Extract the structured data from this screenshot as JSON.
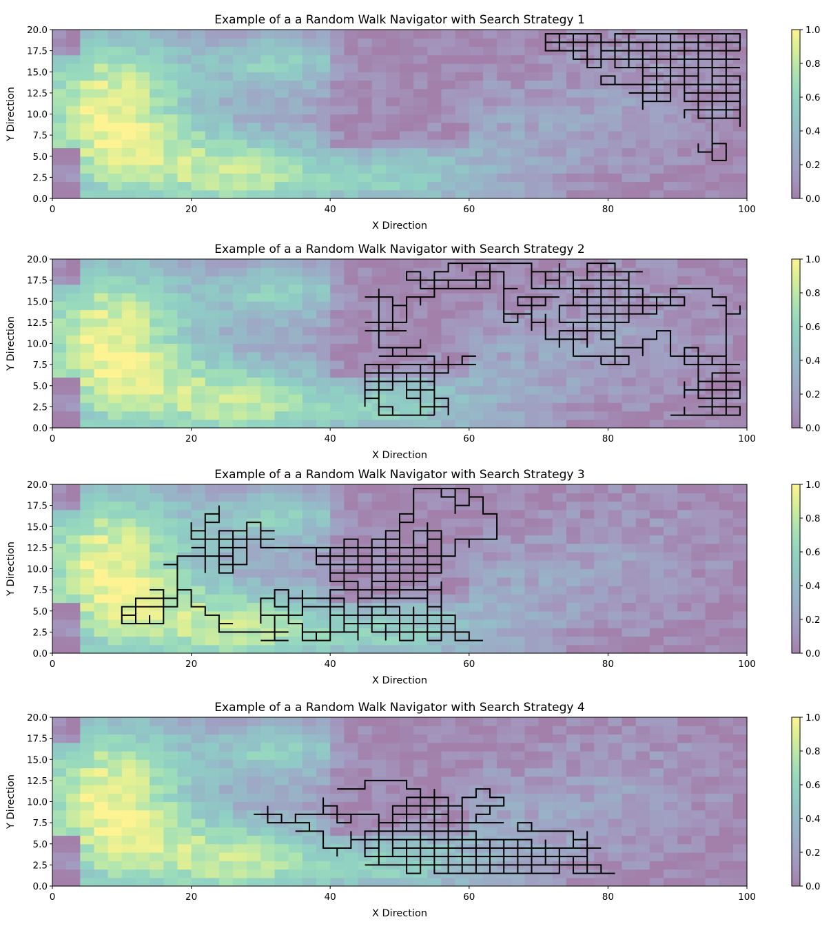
{
  "chart_data": [
    {
      "type": "heatmap",
      "title": "Example of a a Random Walk Navigator with Search Strategy 1",
      "xlabel": "X Direction",
      "ylabel": "Y Direction",
      "xlim": [
        0,
        100
      ],
      "ylim": [
        0,
        20
      ],
      "xticks": [
        "0",
        "20",
        "40",
        "60",
        "80",
        "100"
      ],
      "yticks": [
        "0.0",
        "2.5",
        "5.0",
        "7.5",
        "10.0",
        "12.5",
        "15.0",
        "17.5",
        "20.0"
      ],
      "colorbar": {
        "min": 0.0,
        "max": 1.0,
        "ticks": [
          "0.0",
          "0.2",
          "0.4",
          "0.6",
          "0.8",
          "1.0"
        ],
        "colormap": "viridis",
        "alpha": 0.5
      },
      "overlay": {
        "type": "line",
        "color": "#000000",
        "region": {
          "x": [
            70,
            100
          ],
          "y": [
            1.5,
            19.5
          ]
        },
        "seed": 11
      }
    },
    {
      "type": "heatmap",
      "title": "Example of a a Random Walk Navigator with Search Strategy 2",
      "xlabel": "X Direction",
      "ylabel": "Y Direction",
      "xlim": [
        0,
        100
      ],
      "ylim": [
        0,
        20
      ],
      "xticks": [
        "0",
        "20",
        "40",
        "60",
        "80",
        "100"
      ],
      "yticks": [
        "0.0",
        "2.5",
        "5.0",
        "7.5",
        "10.0",
        "12.5",
        "15.0",
        "17.5",
        "20.0"
      ],
      "colorbar": {
        "min": 0.0,
        "max": 1.0,
        "ticks": [
          "0.0",
          "0.2",
          "0.4",
          "0.6",
          "0.8",
          "1.0"
        ],
        "colormap": "viridis",
        "alpha": 0.5
      },
      "overlay": {
        "type": "line",
        "color": "#000000",
        "region": {
          "x": [
            45,
            100
          ],
          "y": [
            1.5,
            19.5
          ]
        },
        "seed": 22
      }
    },
    {
      "type": "heatmap",
      "title": "Example of a a Random Walk Navigator with Search Strategy 3",
      "xlabel": "X Direction",
      "ylabel": "Y Direction",
      "xlim": [
        0,
        100
      ],
      "ylim": [
        0,
        20
      ],
      "xticks": [
        "0",
        "20",
        "40",
        "60",
        "80",
        "100"
      ],
      "yticks": [
        "0.0",
        "2.5",
        "5.0",
        "7.5",
        "10.0",
        "12.5",
        "15.0",
        "17.5",
        "20.0"
      ],
      "colorbar": {
        "min": 0.0,
        "max": 1.0,
        "ticks": [
          "0.0",
          "0.2",
          "0.4",
          "0.6",
          "0.8",
          "1.0"
        ],
        "colormap": "viridis",
        "alpha": 0.5
      },
      "overlay": {
        "type": "line",
        "color": "#000000",
        "region": {
          "x": [
            8,
            100
          ],
          "y": [
            1.5,
            19.5
          ]
        },
        "seed": 33
      }
    },
    {
      "type": "heatmap",
      "title": "Example of a a Random Walk Navigator with Search Strategy 4",
      "xlabel": "X Direction",
      "ylabel": "Y Direction",
      "xlim": [
        0,
        100
      ],
      "ylim": [
        0,
        20
      ],
      "xticks": [
        "0",
        "20",
        "40",
        "60",
        "80",
        "100"
      ],
      "yticks": [
        "0.0",
        "2.5",
        "5.0",
        "7.5",
        "10.0",
        "12.5",
        "15.0",
        "17.5",
        "20.0"
      ],
      "colorbar": {
        "min": 0.0,
        "max": 1.0,
        "ticks": [
          "0.0",
          "0.2",
          "0.4",
          "0.6",
          "0.8",
          "1.0"
        ],
        "colormap": "viridis",
        "alpha": 0.5
      },
      "overlay": {
        "type": "line",
        "color": "#000000",
        "region": {
          "x": [
            10,
            100
          ],
          "y": [
            1.5,
            19.5
          ]
        },
        "seed": 44
      }
    }
  ]
}
